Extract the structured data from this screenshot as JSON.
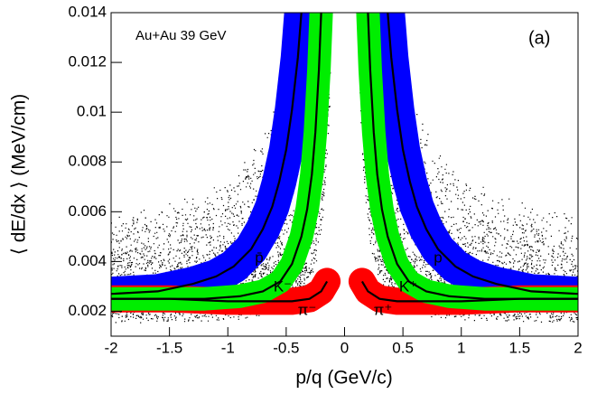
{
  "chart_data": {
    "type": "line",
    "annotations": [
      "Au+Au 39 GeV",
      "(a)"
    ],
    "x_label": "p/q (GeV/c)",
    "y_label": "⟨ dE/dx ⟩ (MeV/cm)",
    "xlim": [
      -2,
      2
    ],
    "ylim": [
      0.001,
      0.014
    ],
    "xticks": [
      -2,
      -1.5,
      -1,
      -0.5,
      0,
      0.5,
      1,
      1.5,
      2
    ],
    "yticks": [
      0.002,
      0.004,
      0.006,
      0.008,
      0.01,
      0.012,
      0.014
    ],
    "series": [
      {
        "name": "p̄",
        "color": "#0000ff",
        "x": [
          -0.37,
          -0.4,
          -0.45,
          -0.5,
          -0.56,
          -0.62,
          -0.7,
          -0.8,
          -0.95,
          -1.1,
          -1.3,
          -1.6,
          -2.0
        ],
        "values": [
          0.014,
          0.0122,
          0.0101,
          0.0085,
          0.0072,
          0.0062,
          0.0053,
          0.0045,
          0.0038,
          0.0034,
          0.0031,
          0.0028,
          0.0027
        ]
      },
      {
        "name": "K⁻",
        "color": "#00ee00",
        "x": [
          -0.2,
          -0.22,
          -0.25,
          -0.28,
          -0.32,
          -0.37,
          -0.45,
          -0.55,
          -0.7,
          -0.9,
          -1.2,
          -1.6,
          -2.0
        ],
        "values": [
          0.014,
          0.0117,
          0.0092,
          0.0075,
          0.0061,
          0.005,
          0.0039,
          0.0032,
          0.0028,
          0.0026,
          0.0025,
          0.0025,
          0.0025
        ]
      },
      {
        "name": "π⁻",
        "color": "#ff0000",
        "x": [
          -0.15,
          -0.2,
          -0.3,
          -0.45,
          -0.7,
          -1.0,
          -1.5,
          -2.0
        ],
        "values": [
          0.0032,
          0.0028,
          0.0025,
          0.0024,
          0.0024,
          0.0024,
          0.0025,
          0.0025
        ]
      },
      {
        "name": "π⁺",
        "color": "#ff0000",
        "x": [
          0.15,
          0.2,
          0.3,
          0.45,
          0.7,
          1.0,
          1.5,
          2.0
        ],
        "values": [
          0.0032,
          0.0028,
          0.0025,
          0.0024,
          0.0024,
          0.0024,
          0.0025,
          0.0025
        ]
      },
      {
        "name": "K⁺",
        "color": "#00ee00",
        "x": [
          0.2,
          0.22,
          0.25,
          0.28,
          0.32,
          0.37,
          0.45,
          0.55,
          0.7,
          0.9,
          1.2,
          1.6,
          2.0
        ],
        "values": [
          0.014,
          0.0117,
          0.0092,
          0.0075,
          0.0061,
          0.005,
          0.0039,
          0.0032,
          0.0028,
          0.0026,
          0.0025,
          0.0025,
          0.0025
        ]
      },
      {
        "name": "p",
        "color": "#0000ff",
        "x": [
          0.37,
          0.4,
          0.45,
          0.5,
          0.56,
          0.62,
          0.7,
          0.8,
          0.95,
          1.1,
          1.3,
          1.6,
          2.0
        ],
        "values": [
          0.014,
          0.0122,
          0.0101,
          0.0085,
          0.0072,
          0.0062,
          0.0053,
          0.0045,
          0.0038,
          0.0034,
          0.0031,
          0.0028,
          0.0027
        ]
      }
    ]
  }
}
